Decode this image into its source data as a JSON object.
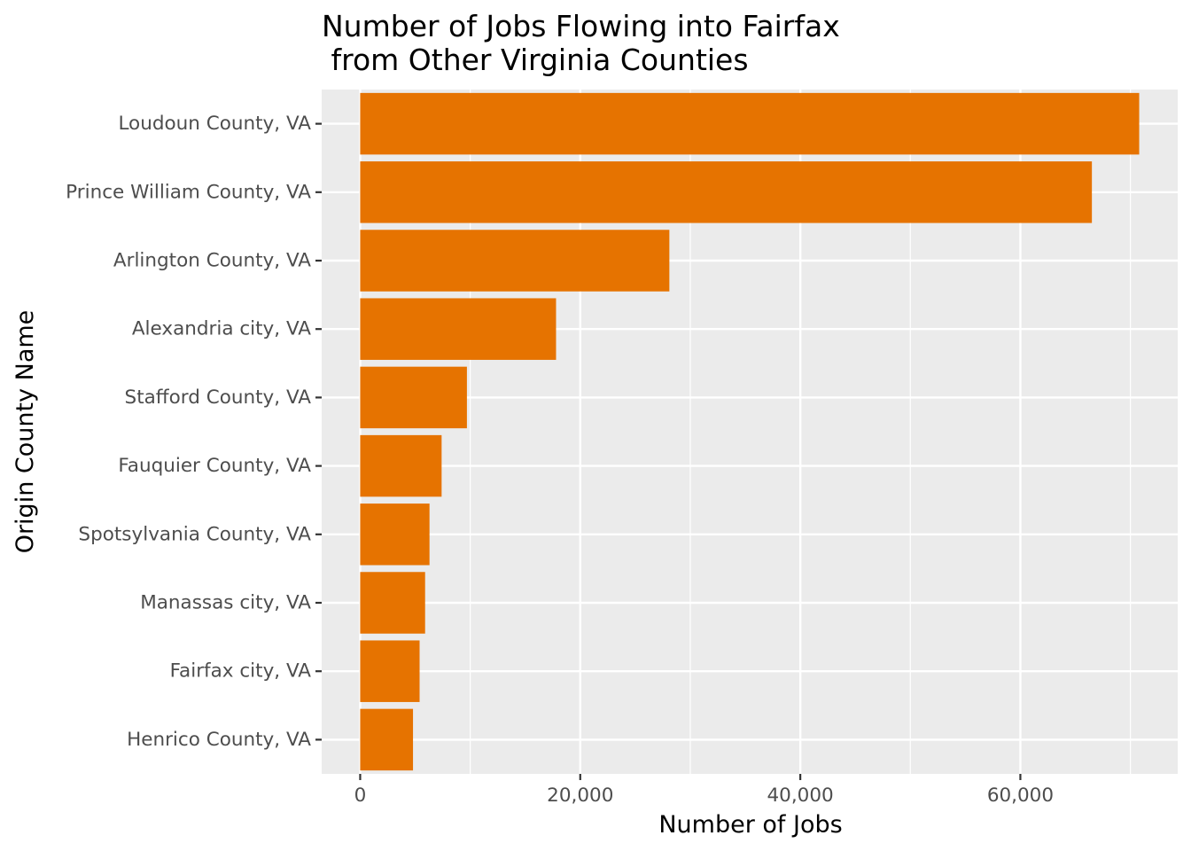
{
  "chart_data": {
    "type": "bar",
    "orientation": "horizontal",
    "title_lines": [
      "Number of Jobs Flowing into Fairfax",
      " from Other Virginia Counties"
    ],
    "xlabel": "Number of Jobs",
    "ylabel": "Origin County Name",
    "categories": [
      "Loudoun County, VA",
      "Prince William County, VA",
      "Arlington County, VA",
      "Alexandria city, VA",
      "Stafford County, VA",
      "Fauquier County, VA",
      "Spotsylvania County, VA",
      "Manassas city, VA",
      "Fairfax city, VA",
      "Henrico County, VA"
    ],
    "values": [
      70800,
      66500,
      28100,
      17800,
      9700,
      7400,
      6300,
      5900,
      5400,
      4800
    ],
    "xlim": [
      -3500,
      74300
    ],
    "x_ticks": [
      0,
      20000,
      40000,
      60000
    ],
    "x_tick_labels": [
      "0",
      "20,000",
      "40,000",
      "60,000"
    ],
    "x_minor_ticks": [
      10000,
      30000,
      50000,
      70000
    ],
    "grid": true,
    "colors": {
      "bar": "#E67300",
      "panel": "#EBEBEB",
      "grid": "#FFFFFF",
      "tick_text": "#4D4D4D",
      "tick_mark": "#333333"
    }
  }
}
